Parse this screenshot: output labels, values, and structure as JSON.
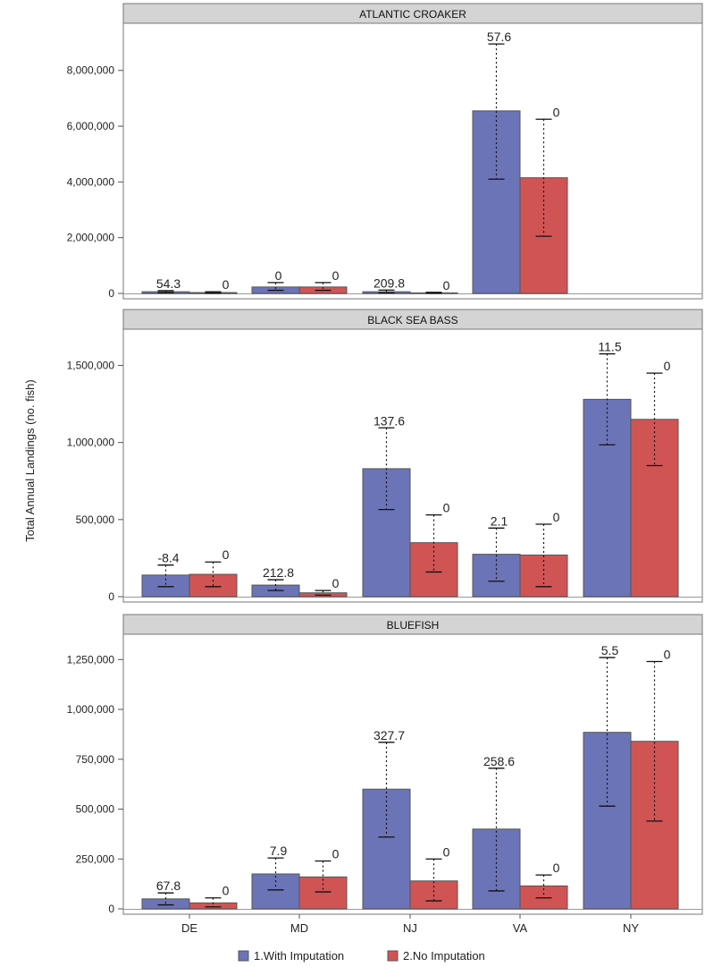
{
  "y_axis_label": "Total Annual Landings (no. fish)",
  "legend": {
    "items": [
      {
        "label": "1.With Imputation",
        "color": "#6b74b6"
      },
      {
        "label": "2.No Imputation",
        "color": "#d15455"
      }
    ]
  },
  "colors": {
    "series1": "#6b74b6",
    "series2": "#d15455",
    "bar_stroke": "#555555",
    "panel_header": "#d4d4d4"
  },
  "chart_data": [
    {
      "type": "bar",
      "title": "ATLANTIC CROAKER",
      "categories": [
        "DE",
        "MD",
        "NJ",
        "VA",
        "NY"
      ],
      "ylim": [
        0,
        9500000
      ],
      "yticks": [
        0,
        2000000,
        4000000,
        6000000,
        8000000
      ],
      "ytick_labels": [
        "0",
        "2,000,000",
        "4,000,000",
        "6,000,000",
        "8,000,000"
      ],
      "series": [
        {
          "name": "1.With Imputation",
          "values": [
            60000,
            230000,
            60000,
            6550000,
            null
          ],
          "lower": [
            30000,
            110000,
            20000,
            4100000,
            null
          ],
          "upper": [
            100000,
            390000,
            120000,
            8950000,
            null
          ],
          "labels": [
            "54.3",
            "0",
            "209.8",
            "57.6",
            null
          ]
        },
        {
          "name": "2.No Imputation",
          "values": [
            30000,
            230000,
            20000,
            4150000,
            null
          ],
          "lower": [
            10000,
            110000,
            5000,
            2050000,
            null
          ],
          "upper": [
            60000,
            390000,
            40000,
            6250000,
            null
          ],
          "labels": [
            "0",
            "0",
            "0",
            "0",
            null
          ]
        }
      ]
    },
    {
      "type": "bar",
      "title": "BLACK SEA BASS",
      "categories": [
        "DE",
        "MD",
        "NJ",
        "VA",
        "NY"
      ],
      "ylim": [
        0,
        1700000
      ],
      "yticks": [
        0,
        500000,
        1000000,
        1500000
      ],
      "ytick_labels": [
        "0",
        "500,000",
        "1,000,000",
        "1,500,000"
      ],
      "series": [
        {
          "name": "1.With Imputation",
          "values": [
            140000,
            75000,
            830000,
            275000,
            1280000
          ],
          "lower": [
            65000,
            40000,
            565000,
            100000,
            985000
          ],
          "upper": [
            205000,
            110000,
            1095000,
            445000,
            1575000
          ],
          "labels": [
            "-8.4",
            "212.8",
            "137.6",
            "2.1",
            "11.5"
          ]
        },
        {
          "name": "2.No Imputation",
          "values": [
            145000,
            25000,
            350000,
            270000,
            1150000
          ],
          "lower": [
            65000,
            10000,
            160000,
            65000,
            850000
          ],
          "upper": [
            225000,
            40000,
            530000,
            470000,
            1450000
          ],
          "labels": [
            "0",
            "0",
            "0",
            "0",
            "0"
          ]
        }
      ]
    },
    {
      "type": "bar",
      "title": "BLUEFISH",
      "categories": [
        "DE",
        "MD",
        "NJ",
        "VA",
        "NY"
      ],
      "ylim": [
        0,
        1350000
      ],
      "yticks": [
        0,
        250000,
        500000,
        750000,
        1000000,
        1250000
      ],
      "ytick_labels": [
        "0",
        "250,000",
        "500,000",
        "750,000",
        "1,000,000",
        "1,250,000"
      ],
      "series": [
        {
          "name": "1.With Imputation",
          "values": [
            50000,
            175000,
            600000,
            400000,
            885000
          ],
          "lower": [
            20000,
            95000,
            360000,
            90000,
            515000
          ],
          "upper": [
            80000,
            255000,
            835000,
            705000,
            1260000
          ],
          "labels": [
            "67.8",
            "7.9",
            "327.7",
            "258.6",
            "5.5"
          ]
        },
        {
          "name": "2.No Imputation",
          "values": [
            30000,
            160000,
            140000,
            115000,
            840000
          ],
          "lower": [
            10000,
            85000,
            40000,
            55000,
            440000
          ],
          "upper": [
            55000,
            240000,
            250000,
            170000,
            1240000
          ],
          "labels": [
            "0",
            "0",
            "0",
            "0",
            "0"
          ]
        }
      ]
    }
  ]
}
